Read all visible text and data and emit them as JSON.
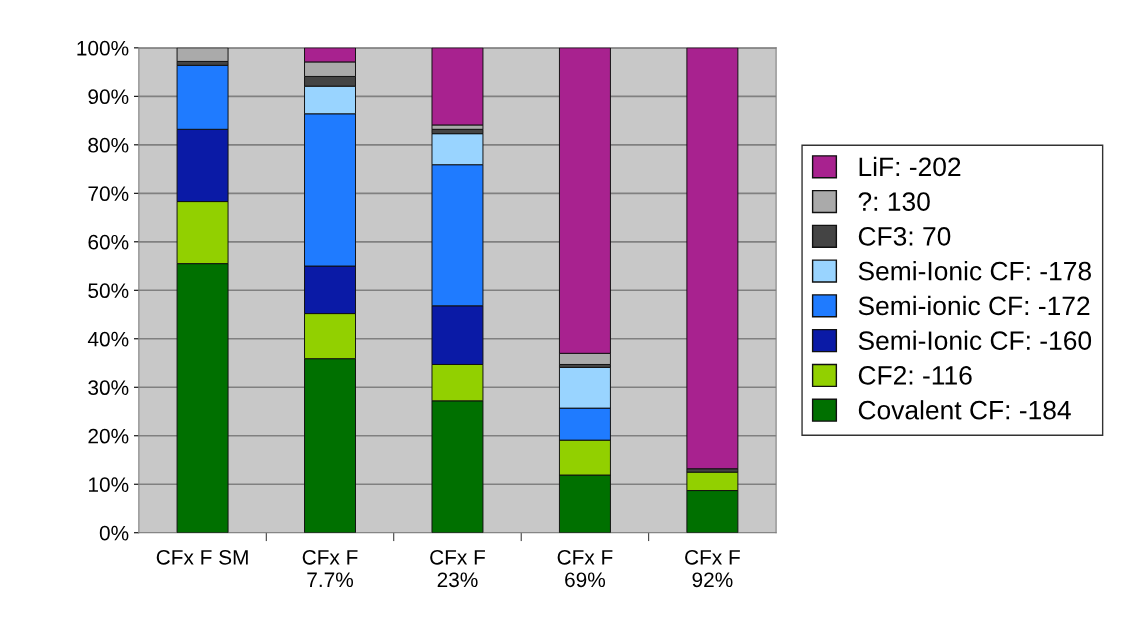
{
  "chart_data": {
    "type": "bar",
    "stacked": true,
    "categories": [
      "CFx F SM",
      "CFx F\n7.7%",
      "CFx F\n23%",
      "CFx F\n69%",
      "CFx F\n92%"
    ],
    "series": [
      {
        "name": "Covalent CF: -184",
        "color": "#007000",
        "values": [
          55.5,
          35.9,
          27.2,
          11.9,
          8.7
        ]
      },
      {
        "name": "CF2: -116",
        "color": "#92d000",
        "values": [
          12.8,
          9.3,
          7.5,
          7.2,
          3.8
        ]
      },
      {
        "name": "Semi-Ionic CF: -160",
        "color": "#0a1aa6",
        "values": [
          14.9,
          9.8,
          12.1,
          null,
          null
        ]
      },
      {
        "name": "Semi-ionic CF: -172",
        "color": "#1f7bff",
        "values": [
          13.2,
          31.4,
          29.1,
          6.6,
          null
        ]
      },
      {
        "name": "Semi-Ionic CF: -178",
        "color": "#99d4ff",
        "values": [
          null,
          5.7,
          6.4,
          8.4,
          null
        ]
      },
      {
        "name": "CF3: 70",
        "color": "#444444",
        "values": [
          0.8,
          2.0,
          0.9,
          0.6,
          0.7
        ]
      },
      {
        "name": "?: 130",
        "color": "#aaaaaa",
        "values": [
          2.8,
          3.0,
          0.9,
          2.3,
          null
        ]
      },
      {
        "name": "LiF: -202",
        "color": "#a8228f",
        "values": [
          null,
          2.9,
          15.9,
          63.0,
          86.8
        ]
      }
    ],
    "ylim": [
      0,
      100
    ],
    "yticks": [
      {
        "value": 0,
        "label": "0%"
      },
      {
        "value": 10,
        "label": "10%"
      },
      {
        "value": 20,
        "label": "20%"
      },
      {
        "value": 30,
        "label": "30%"
      },
      {
        "value": 40,
        "label": "40%"
      },
      {
        "value": 50,
        "label": "50%"
      },
      {
        "value": 60,
        "label": "60%"
      },
      {
        "value": 70,
        "label": "70%"
      },
      {
        "value": 80,
        "label": "80%"
      },
      {
        "value": 90,
        "label": "90%"
      },
      {
        "value": 100,
        "label": "100%"
      }
    ],
    "grid": "y",
    "legend": "right"
  }
}
